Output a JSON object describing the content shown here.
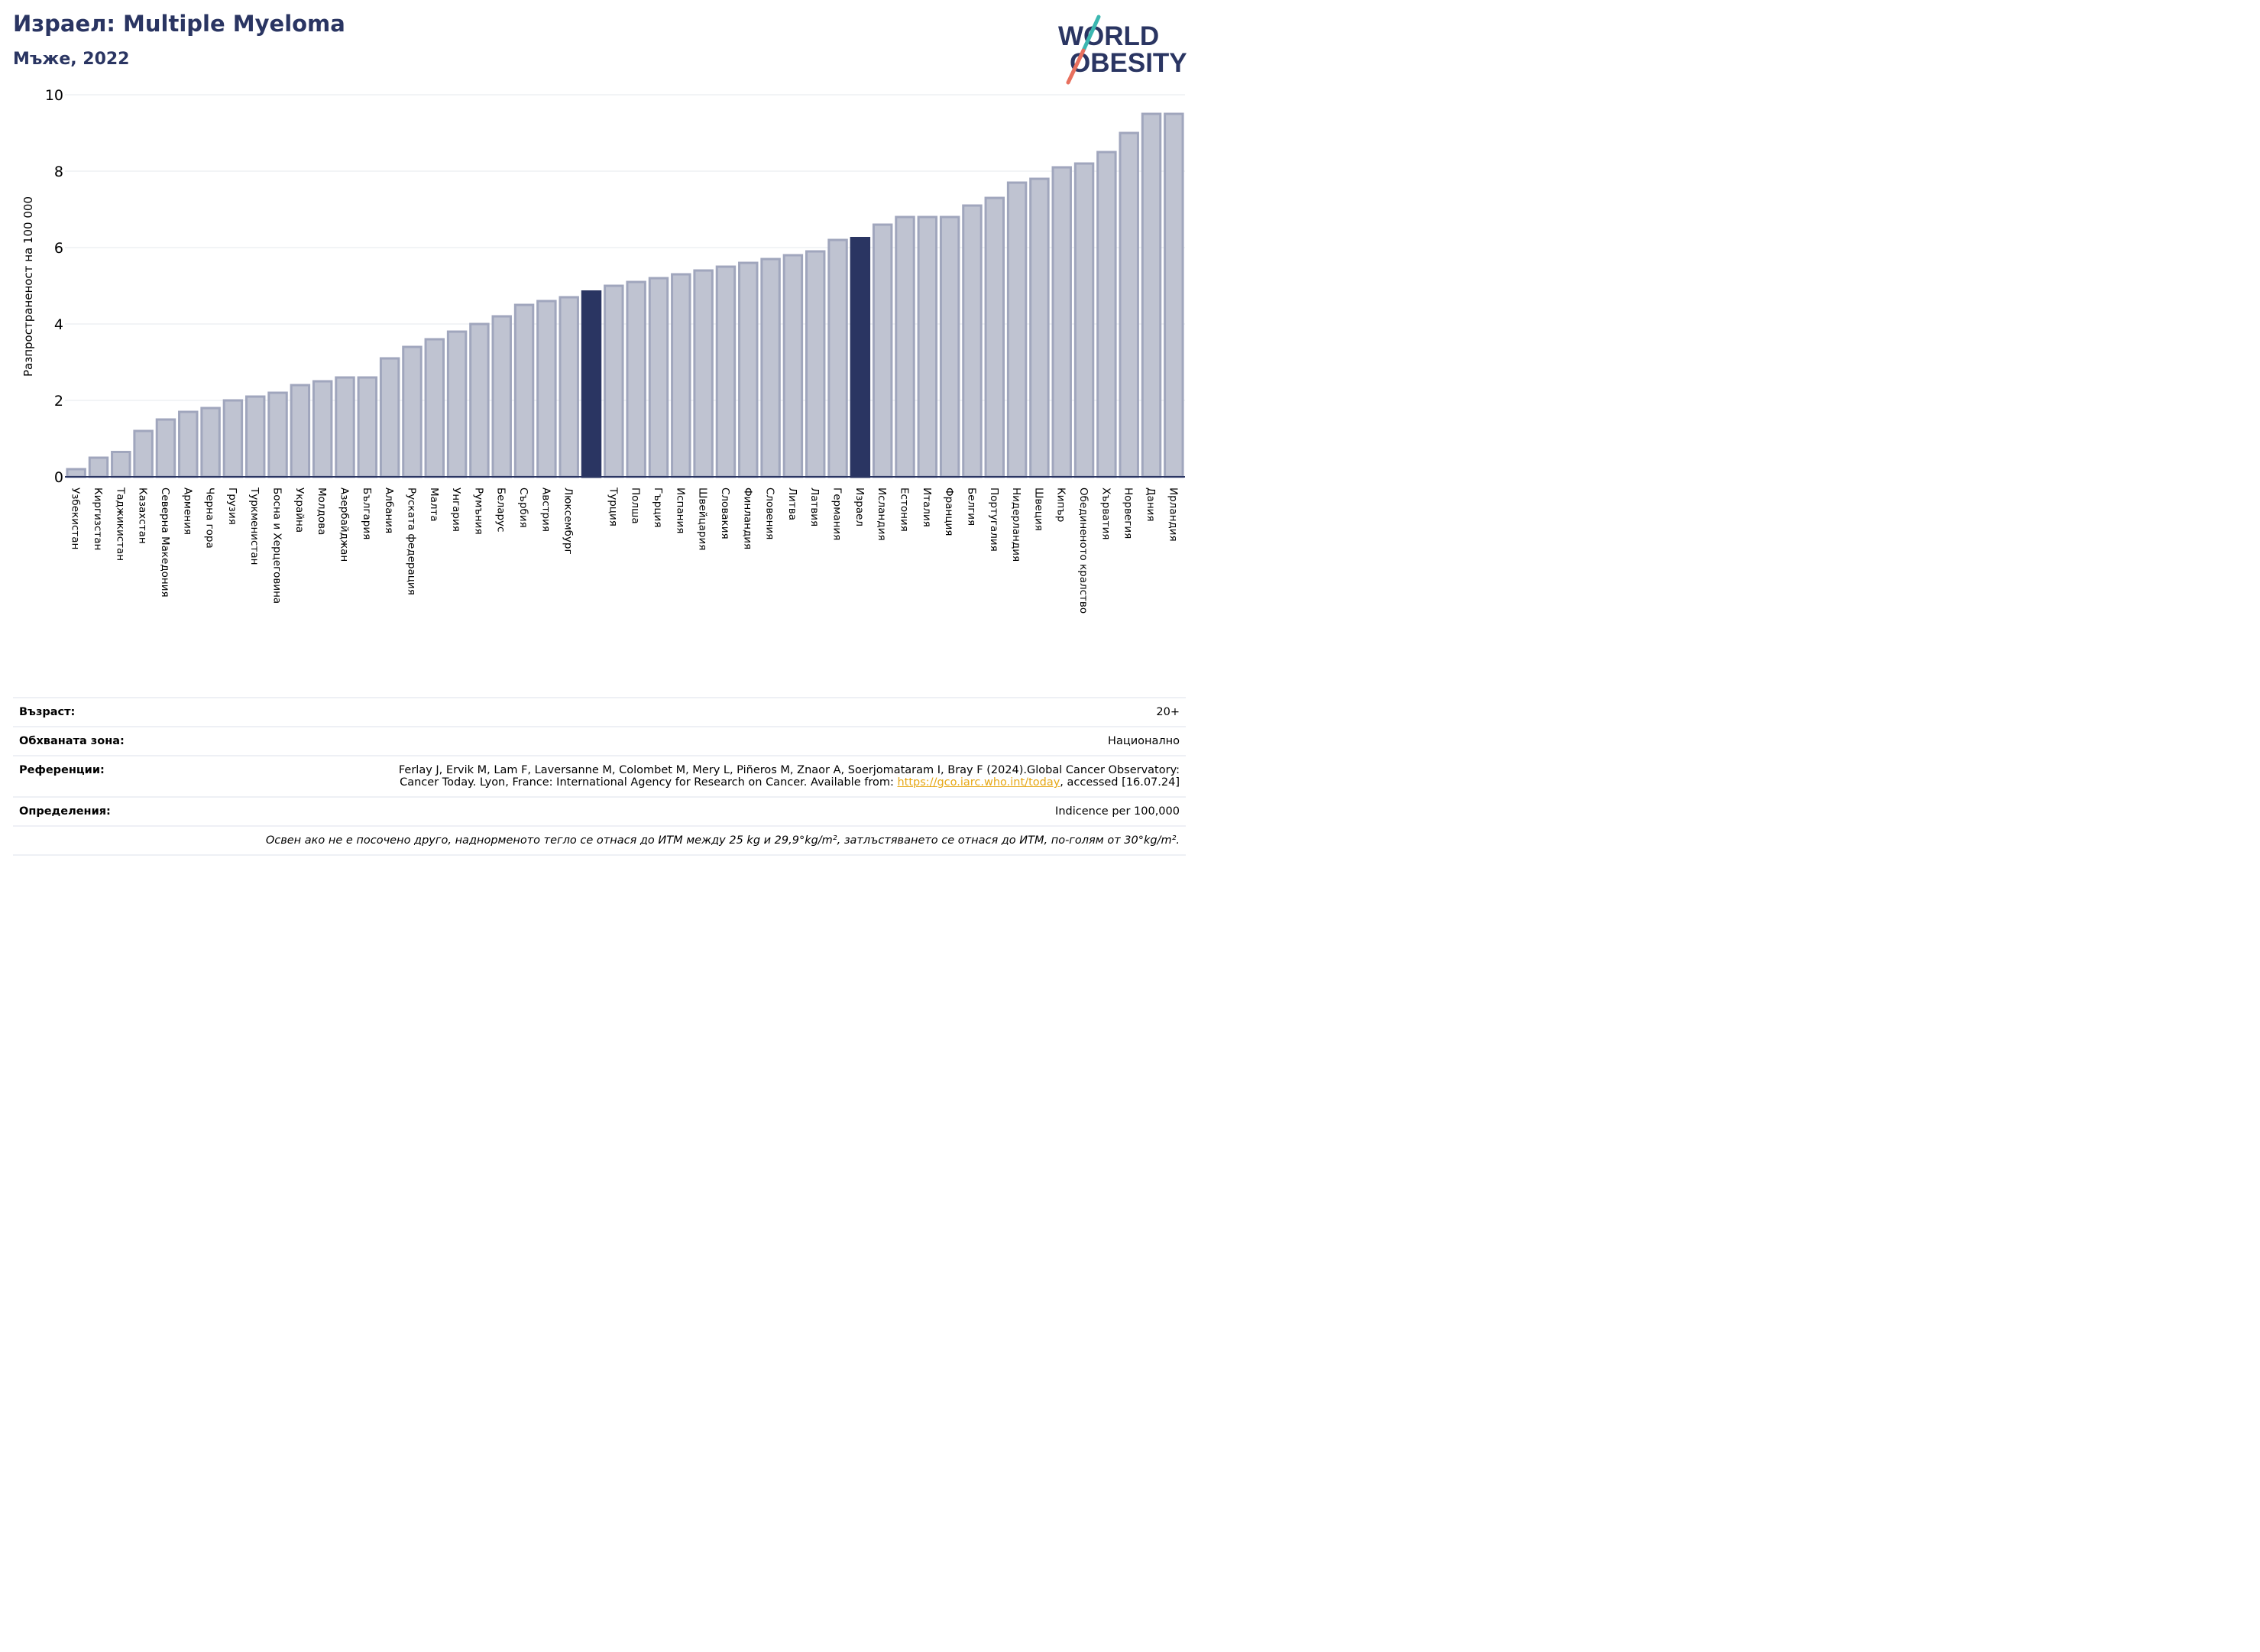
{
  "header": {
    "title": "Израел: Multiple Myeloma",
    "subtitle": "Мъже, 2022"
  },
  "logo": {
    "line1": "WORLD",
    "line2": "OBESITY"
  },
  "colors": {
    "bar": "#bfc3d1",
    "bar_edge": "#a0a6bd",
    "highlight": "#2a3562",
    "grid": "#e6e8ee"
  },
  "chart_data": {
    "type": "bar",
    "ylabel": "Разпространеност  на 100 000",
    "ylim": [
      0,
      10
    ],
    "yticks": [
      0,
      2,
      4,
      6,
      8,
      10
    ],
    "categories": [
      "Узбекистан",
      "Киргизстан",
      "Таджикистан",
      "Казахстан",
      "Северна Македония",
      "Армения",
      "Черна гора",
      "Грузия",
      "Туркменистан",
      "Босна и Херцеговина",
      "Украйна",
      "Молдова",
      "Азербайджан",
      "България",
      "Албания",
      "Руската федерация",
      "Малта",
      "Унгария",
      "Румъния",
      "Беларус",
      "Сърбия",
      "Австрия",
      "Люксембург",
      "",
      "Турция",
      "Полша",
      "Гърция",
      "Испания",
      "Швейцария",
      "Словакия",
      "Финландия",
      "Словения",
      "Литва",
      "Латвия",
      "Германия",
      "Израел",
      "Исландия",
      "Естония",
      "Италия",
      "Франция",
      "Белгия",
      "Португалия",
      "Нидерландия",
      "Швеция",
      "Кипър",
      "Обединеното кралство",
      "Хърватия",
      "Норвегия",
      "Дания",
      "Ирландия"
    ],
    "values": [
      0.2,
      0.5,
      0.65,
      1.2,
      1.5,
      1.7,
      1.8,
      2.0,
      2.1,
      2.2,
      2.4,
      2.5,
      2.6,
      2.6,
      3.1,
      3.4,
      3.6,
      3.8,
      4.0,
      4.2,
      4.5,
      4.6,
      4.7,
      4.85,
      5.0,
      5.1,
      5.2,
      5.3,
      5.4,
      5.5,
      5.6,
      5.7,
      5.8,
      5.9,
      6.2,
      6.25,
      6.6,
      6.8,
      6.8,
      6.8,
      7.1,
      7.3,
      7.7,
      7.8,
      8.1,
      8.2,
      8.5,
      9.0,
      9.5,
      9.5
    ],
    "highlighted": [
      23,
      35
    ]
  },
  "info": {
    "age_label": "Възраст:",
    "age_value": "20+",
    "area_label": "Обхваната зона:",
    "area_value": "Национално",
    "refs_label": "Референции:",
    "refs_line1": "Ferlay J, Ervik M, Lam F, Laversanne M, Colombet M, Mery L, Piñeros M, Znaor A, Soerjomataram I, Bray F (2024).Global Cancer Observatory:",
    "refs_line2_pre": "Cancer Today. Lyon, France: International Agency for Research on Cancer. Available from: ",
    "refs_link": "https://gco.iarc.who.int/today",
    "refs_line2_post": ", accessed [16.07.24]",
    "def_label": "Определения:",
    "def_value": "Indicence per 100,000",
    "footnote": "Освен ако не е посочено друго, наднорменото тегло се отнася до ИТМ между 25 kg и 29,9°kg/m², затлъстяването се отнася до ИТМ, по-голям от 30°kg/m²."
  }
}
